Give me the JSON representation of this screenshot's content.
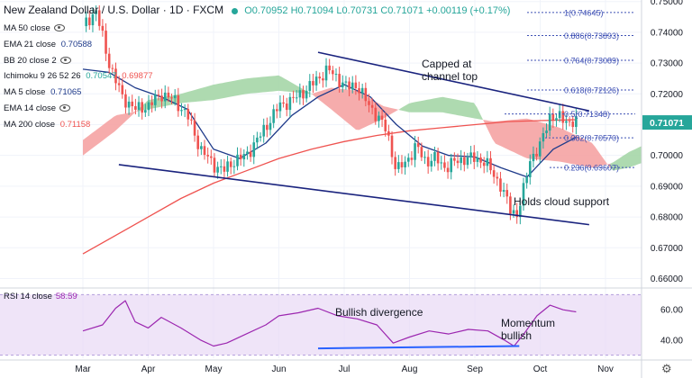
{
  "header": {
    "title": "New Zealand Dollar / U.S. Dollar · 1D · FXCM",
    "open": "O0.70952",
    "high": "H0.71094",
    "low": "L0.70731",
    "close": "C0.71071",
    "change": "+0.00119 (+0.17%)"
  },
  "indicators": [
    {
      "label": "MA 50 close",
      "value": "",
      "color": "#2196f3"
    },
    {
      "label": "EMA 21 close",
      "value": "0.70588",
      "color": "#131722"
    },
    {
      "label": "BB 20 close 2",
      "value": "",
      "color": "#131722"
    },
    {
      "label": "Ichimoku 9 26 52 26",
      "value": "0.70547",
      "value2": "0.69877",
      "color": "#26a69a",
      "color2": "#ef5350"
    },
    {
      "label": "MA 5 close",
      "value": "0.71065",
      "color": "#1e3a8a"
    },
    {
      "label": "EMA 14 close",
      "value": "",
      "color": "#131722"
    },
    {
      "label": "MA 200 close",
      "value": "0.71158",
      "color": "#ef5350"
    }
  ],
  "rsi": {
    "label": "RSI 14 close",
    "value": "58.59"
  },
  "annotations": {
    "capped": "Capped at\nchannel top",
    "holds": "Holds cloud support",
    "divergence": "Bullish divergence",
    "momentum": "Momentum\nbullish"
  },
  "chart_data": {
    "type": "line",
    "symbol": "NZDUSD",
    "timeframe": "1D",
    "x_ticks": [
      "Mar",
      "Apr",
      "May",
      "Jun",
      "Jul",
      "Aug",
      "Sep",
      "Oct",
      "Nov"
    ],
    "price_axis": {
      "ticks": [
        "0.75000",
        "0.74000",
        "0.73000",
        "0.72000",
        "0.71000",
        "0.70000",
        "0.69000",
        "0.68000",
        "0.67000",
        "0.66000"
      ],
      "range": [
        0.6575,
        0.7505
      ]
    },
    "rsi_axis": {
      "ticks": [
        "60.00",
        "40.00"
      ],
      "range": [
        28,
        72
      ]
    },
    "last_price": "0.71071",
    "fib_levels": [
      {
        "label": "1(0.74645)",
        "price": 0.74645
      },
      {
        "label": "0.886(0.73893)",
        "price": 0.73893
      },
      {
        "label": "0.764(0.73089)",
        "price": 0.73089
      },
      {
        "label": "0.618(0.72126)",
        "price": 0.72126
      },
      {
        "label": "0.5(0.71348)",
        "price": 0.71348
      },
      {
        "label": "0.382(0.70570)",
        "price": 0.7057
      },
      {
        "label": "0.236(0.69607)",
        "price": 0.69607
      }
    ],
    "price_series": [
      {
        "t": 0,
        "p": 0.742
      },
      {
        "t": 0.2,
        "p": 0.747
      },
      {
        "t": 0.4,
        "p": 0.73
      },
      {
        "t": 0.6,
        "p": 0.719
      },
      {
        "t": 0.8,
        "p": 0.715
      },
      {
        "t": 1.0,
        "p": 0.716
      },
      {
        "t": 1.2,
        "p": 0.72
      },
      {
        "t": 1.4,
        "p": 0.718
      },
      {
        "t": 1.6,
        "p": 0.713
      },
      {
        "t": 1.8,
        "p": 0.702
      },
      {
        "t": 2.0,
        "p": 0.697
      },
      {
        "t": 2.15,
        "p": 0.695
      },
      {
        "t": 2.3,
        "p": 0.698
      },
      {
        "t": 2.5,
        "p": 0.7
      },
      {
        "t": 2.7,
        "p": 0.706
      },
      {
        "t": 2.85,
        "p": 0.711
      },
      {
        "t": 3.0,
        "p": 0.716
      },
      {
        "t": 3.2,
        "p": 0.718
      },
      {
        "t": 3.4,
        "p": 0.721
      },
      {
        "t": 3.6,
        "p": 0.725
      },
      {
        "t": 3.75,
        "p": 0.728
      },
      {
        "t": 3.9,
        "p": 0.725
      },
      {
        "t": 4.05,
        "p": 0.722
      },
      {
        "t": 4.2,
        "p": 0.723
      },
      {
        "t": 4.35,
        "p": 0.717
      },
      {
        "t": 4.5,
        "p": 0.713
      },
      {
        "t": 4.65,
        "p": 0.708
      },
      {
        "t": 4.8,
        "p": 0.695
      },
      {
        "t": 4.95,
        "p": 0.698
      },
      {
        "t": 5.1,
        "p": 0.703
      },
      {
        "t": 5.25,
        "p": 0.698
      },
      {
        "t": 5.4,
        "p": 0.699
      },
      {
        "t": 5.55,
        "p": 0.696
      },
      {
        "t": 5.7,
        "p": 0.698
      },
      {
        "t": 5.85,
        "p": 0.699
      },
      {
        "t": 6.0,
        "p": 0.699
      },
      {
        "t": 6.15,
        "p": 0.698
      },
      {
        "t": 6.25,
        "p": 0.695
      },
      {
        "t": 6.4,
        "p": 0.69
      },
      {
        "t": 6.55,
        "p": 0.682
      },
      {
        "t": 6.65,
        "p": 0.681
      },
      {
        "t": 6.75,
        "p": 0.689
      },
      {
        "t": 6.85,
        "p": 0.699
      },
      {
        "t": 7.0,
        "p": 0.703
      },
      {
        "t": 7.15,
        "p": 0.713
      },
      {
        "t": 7.3,
        "p": 0.712
      },
      {
        "t": 7.45,
        "p": 0.711
      },
      {
        "t": 7.55,
        "p": 0.7107
      }
    ],
    "ema21": [
      {
        "t": 0,
        "p": 0.728
      },
      {
        "t": 0.4,
        "p": 0.727
      },
      {
        "t": 0.8,
        "p": 0.722
      },
      {
        "t": 1.2,
        "p": 0.719
      },
      {
        "t": 1.6,
        "p": 0.715
      },
      {
        "t": 2.0,
        "p": 0.702
      },
      {
        "t": 2.4,
        "p": 0.699
      },
      {
        "t": 2.8,
        "p": 0.704
      },
      {
        "t": 3.2,
        "p": 0.713
      },
      {
        "t": 3.6,
        "p": 0.719
      },
      {
        "t": 4.0,
        "p": 0.723
      },
      {
        "t": 4.4,
        "p": 0.719
      },
      {
        "t": 4.8,
        "p": 0.71
      },
      {
        "t": 5.2,
        "p": 0.703
      },
      {
        "t": 5.6,
        "p": 0.7
      },
      {
        "t": 6.0,
        "p": 0.6995
      },
      {
        "t": 6.4,
        "p": 0.696
      },
      {
        "t": 6.8,
        "p": 0.693
      },
      {
        "t": 7.2,
        "p": 0.702
      },
      {
        "t": 7.55,
        "p": 0.7059
      }
    ],
    "ma200": [
      {
        "t": 0,
        "p": 0.668
      },
      {
        "t": 0.5,
        "p": 0.674
      },
      {
        "t": 1.0,
        "p": 0.68
      },
      {
        "t": 1.5,
        "p": 0.686
      },
      {
        "t": 2.0,
        "p": 0.691
      },
      {
        "t": 2.5,
        "p": 0.695
      },
      {
        "t": 3.0,
        "p": 0.699
      },
      {
        "t": 3.5,
        "p": 0.702
      },
      {
        "t": 4.0,
        "p": 0.7045
      },
      {
        "t": 4.5,
        "p": 0.7065
      },
      {
        "t": 5.0,
        "p": 0.708
      },
      {
        "t": 5.5,
        "p": 0.709
      },
      {
        "t": 6.0,
        "p": 0.71
      },
      {
        "t": 6.5,
        "p": 0.711
      },
      {
        "t": 7.0,
        "p": 0.7113
      },
      {
        "t": 7.55,
        "p": 0.7116
      }
    ],
    "cloud": [
      {
        "t": 0.0,
        "a": 0.7,
        "b": 0.705
      },
      {
        "t": 0.5,
        "a": 0.708,
        "b": 0.713
      },
      {
        "t": 1.0,
        "a": 0.718,
        "b": 0.715
      },
      {
        "t": 1.5,
        "a": 0.72,
        "b": 0.717
      },
      {
        "t": 2.0,
        "a": 0.723,
        "b": 0.718
      },
      {
        "t": 2.5,
        "a": 0.725,
        "b": 0.72
      },
      {
        "t": 3.0,
        "a": 0.726,
        "b": 0.721
      },
      {
        "t": 3.5,
        "a": 0.72,
        "b": 0.72
      },
      {
        "t": 3.8,
        "a": 0.715,
        "b": 0.722
      },
      {
        "t": 4.2,
        "a": 0.708,
        "b": 0.721
      },
      {
        "t": 4.6,
        "a": 0.712,
        "b": 0.716
      },
      {
        "t": 5.0,
        "a": 0.717,
        "b": 0.714
      },
      {
        "t": 5.5,
        "a": 0.719,
        "b": 0.714
      },
      {
        "t": 6.0,
        "a": 0.717,
        "b": 0.712
      },
      {
        "t": 6.3,
        "a": 0.704,
        "b": 0.711
      },
      {
        "t": 6.8,
        "a": 0.699,
        "b": 0.712
      },
      {
        "t": 7.3,
        "a": 0.698,
        "b": 0.709
      },
      {
        "t": 7.8,
        "a": 0.696,
        "b": 0.704
      },
      {
        "t": 8.1,
        "a": 0.6975,
        "b": 0.695
      },
      {
        "t": 8.35,
        "a": 0.701,
        "b": 0.696
      },
      {
        "t": 8.55,
        "a": 0.703,
        "b": 0.6975
      }
    ],
    "channel": {
      "top": [
        {
          "t": 3.6,
          "p": 0.7335
        },
        {
          "t": 7.75,
          "p": 0.7145
        }
      ],
      "bottom": [
        {
          "t": 0.55,
          "p": 0.697
        },
        {
          "t": 7.75,
          "p": 0.6775
        }
      ]
    },
    "rsi_series": [
      {
        "t": 0,
        "v": 46
      },
      {
        "t": 0.3,
        "v": 50
      },
      {
        "t": 0.5,
        "v": 61
      },
      {
        "t": 0.65,
        "v": 66
      },
      {
        "t": 0.8,
        "v": 52
      },
      {
        "t": 1.0,
        "v": 48
      },
      {
        "t": 1.2,
        "v": 55
      },
      {
        "t": 1.5,
        "v": 48
      },
      {
        "t": 1.8,
        "v": 40
      },
      {
        "t": 2.0,
        "v": 36
      },
      {
        "t": 2.2,
        "v": 38
      },
      {
        "t": 2.5,
        "v": 44
      },
      {
        "t": 2.8,
        "v": 50
      },
      {
        "t": 3.0,
        "v": 56
      },
      {
        "t": 3.3,
        "v": 58
      },
      {
        "t": 3.6,
        "v": 61
      },
      {
        "t": 3.9,
        "v": 56
      },
      {
        "t": 4.2,
        "v": 54
      },
      {
        "t": 4.5,
        "v": 50
      },
      {
        "t": 4.75,
        "v": 38
      },
      {
        "t": 5.0,
        "v": 42
      },
      {
        "t": 5.3,
        "v": 46
      },
      {
        "t": 5.6,
        "v": 44
      },
      {
        "t": 5.9,
        "v": 47
      },
      {
        "t": 6.2,
        "v": 46
      },
      {
        "t": 6.45,
        "v": 40
      },
      {
        "t": 6.6,
        "v": 36
      },
      {
        "t": 6.75,
        "v": 44
      },
      {
        "t": 6.95,
        "v": 56
      },
      {
        "t": 7.15,
        "v": 63
      },
      {
        "t": 7.35,
        "v": 60
      },
      {
        "t": 7.55,
        "v": 58.6
      }
    ],
    "rsi_divergence": [
      {
        "t": 3.6,
        "v": 34.5
      },
      {
        "t": 6.68,
        "v": 36
      }
    ]
  },
  "colors": {
    "ema": "#1e3a8a",
    "ma200": "#ef5350",
    "cloud_bull": "#a5d6a7",
    "cloud_bear": "#f5a3a3",
    "channel": "#1a237e",
    "fib": "#3f51b5",
    "rsi": "#9c27b0",
    "rsi_band": "#e8d9f5",
    "divergence": "#2962ff",
    "up": "#26a69a",
    "down": "#ef5350",
    "last_price_bg": "#26a69a"
  }
}
